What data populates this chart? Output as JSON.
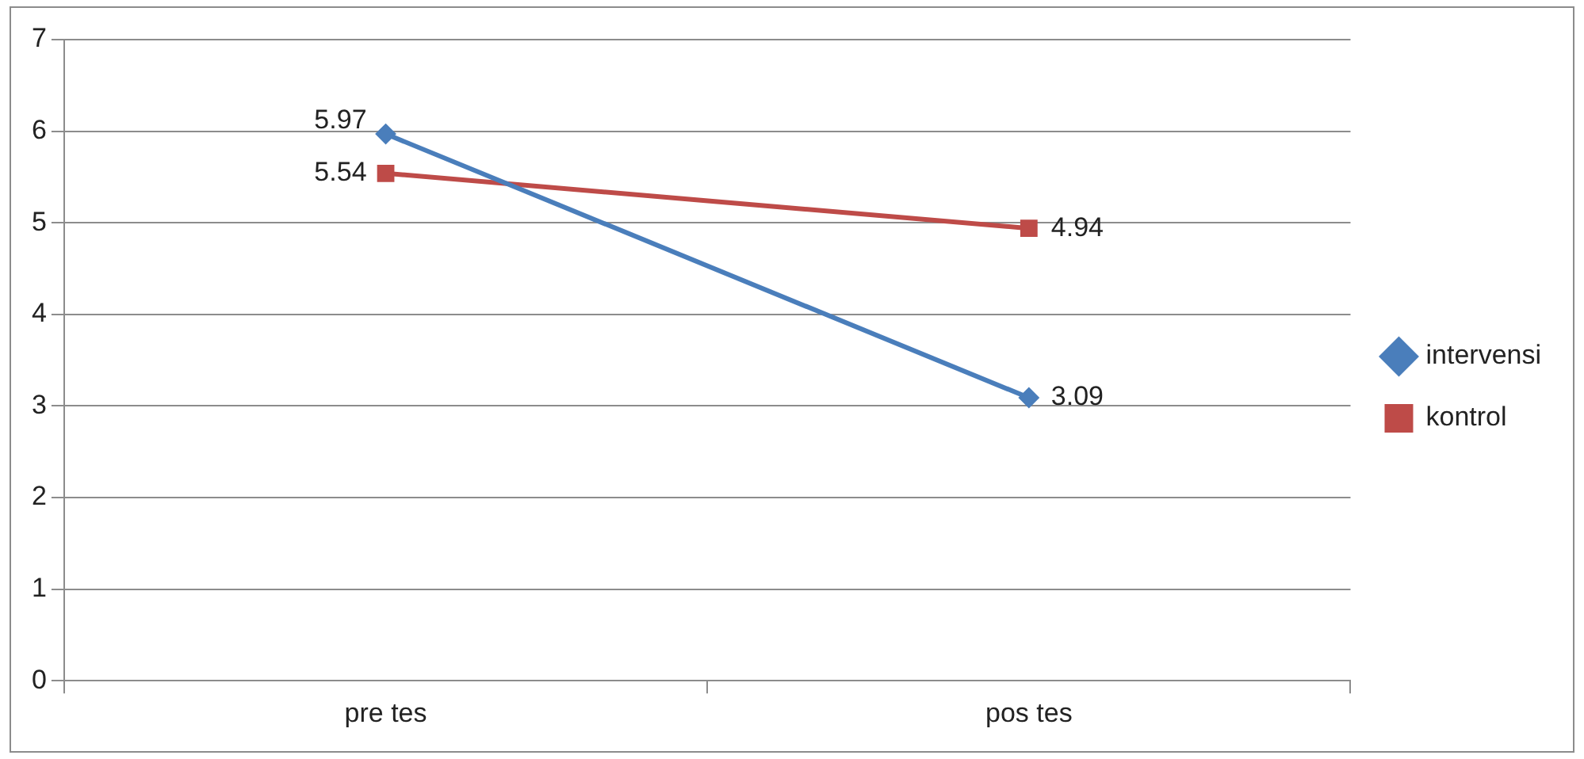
{
  "chart_data": {
    "type": "line",
    "categories": [
      "pre tes",
      "pos tes"
    ],
    "series": [
      {
        "name": "intervensi",
        "color": "#4a7ebb",
        "values": [
          5.97,
          3.09
        ],
        "marker": "diamond"
      },
      {
        "name": "kontrol",
        "color": "#be4b48",
        "values": [
          5.54,
          4.94
        ],
        "marker": "square"
      }
    ],
    "ylim": [
      0,
      7
    ],
    "yticks": [
      0,
      1,
      2,
      3,
      4,
      5,
      6,
      7
    ],
    "grid": "y",
    "legend": "right",
    "data_labels": true,
    "line_style": "solid"
  }
}
